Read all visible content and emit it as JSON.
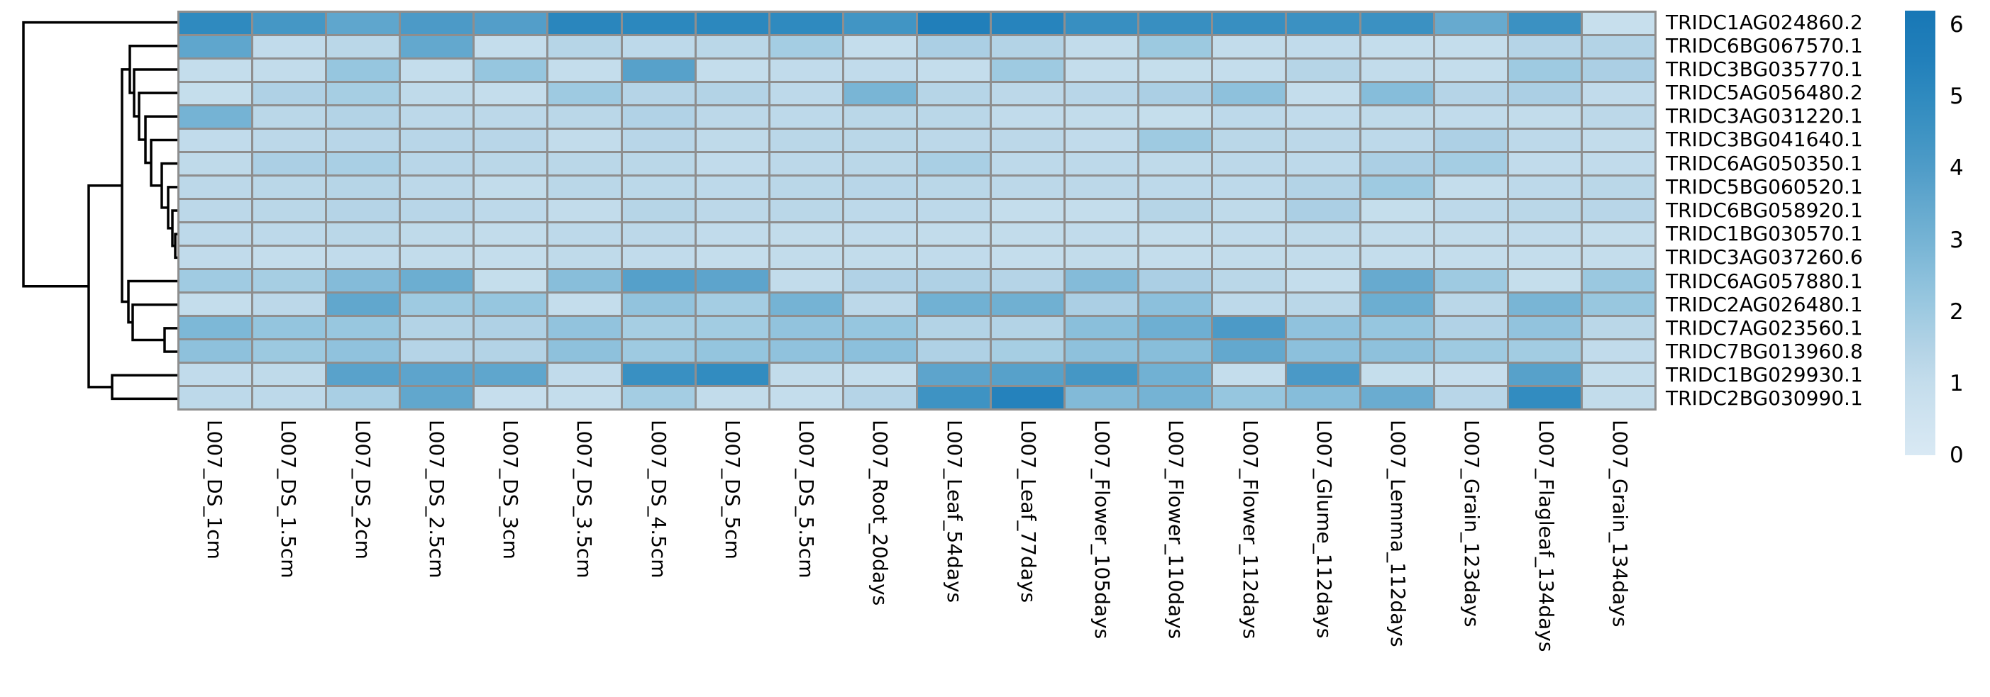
{
  "figure": {
    "kind": "seaborn-style clustermap",
    "background": "#ffffff"
  },
  "chart_data": {
    "type": "heatmap",
    "title": "",
    "xlabel": "",
    "ylabel": "",
    "legend_position": "colorbar-right",
    "grid_line_color": "#8e8e8e",
    "dendrogram_color": "#000000",
    "rows": [
      "TRIDC1AG024860.2",
      "TRIDC6BG067570.1",
      "TRIDC3BG035770.1",
      "TRIDC5AG056480.2",
      "TRIDC3AG031220.1",
      "TRIDC3BG041640.1",
      "TRIDC6AG050350.1",
      "TRIDC5BG060520.1",
      "TRIDC6BG058920.1",
      "TRIDC1BG030570.1",
      "TRIDC3AG037260.6",
      "TRIDC6AG057880.1",
      "TRIDC2AG026480.1",
      "TRIDC7AG023560.1",
      "TRIDC7BG013960.8",
      "TRIDC1BG029930.1",
      "TRIDC2BG030990.1"
    ],
    "columns": [
      "L007_DS_1cm",
      "L007_DS_1.5cm",
      "L007_DS_2cm",
      "L007_DS_2.5cm",
      "L007_DS_3cm",
      "L007_DS_3.5cm",
      "L007_DS_4.5cm",
      "L007_DS_5cm",
      "L007_DS_5.5cm",
      "L007_Root_20days",
      "L007_Leaf_54days",
      "L007_Leaf_77days",
      "L007_Flower_105days",
      "L007_Flower_110days",
      "L007_Flower_112days",
      "L007_Glume_112days",
      "L007_Lemma_112days",
      "L007_Grain_123days",
      "L007_Flagleaf_134days",
      "L007_Grain_134days"
    ],
    "values": [
      [
        5.0,
        4.3,
        3.6,
        4.1,
        3.9,
        5.2,
        5.1,
        5.1,
        5.0,
        4.4,
        5.6,
        5.3,
        4.7,
        4.7,
        4.7,
        4.6,
        4.6,
        3.4,
        4.6,
        0.85
      ],
      [
        3.6,
        1.1,
        1.3,
        3.5,
        1.0,
        1.4,
        1.2,
        1.3,
        1.85,
        1.0,
        1.7,
        1.5,
        1.05,
        2.05,
        1.05,
        1.1,
        1.0,
        1.0,
        1.45,
        1.5
      ],
      [
        1.0,
        1.05,
        2.2,
        1.0,
        2.2,
        1.0,
        3.8,
        1.0,
        1.1,
        1.1,
        1.0,
        2.0,
        1.0,
        0.95,
        1.0,
        1.4,
        1.05,
        1.0,
        2.0,
        1.7
      ],
      [
        0.95,
        1.6,
        1.8,
        1.15,
        1.0,
        2.0,
        1.45,
        1.5,
        1.2,
        2.9,
        1.4,
        1.25,
        1.35,
        1.7,
        2.4,
        1.0,
        2.6,
        1.45,
        1.7,
        1.1
      ],
      [
        3.0,
        1.3,
        1.5,
        1.25,
        1.25,
        1.3,
        1.55,
        1.25,
        1.2,
        1.3,
        1.3,
        1.1,
        1.05,
        0.95,
        1.2,
        1.1,
        1.15,
        1.1,
        1.05,
        1.25
      ],
      [
        1.1,
        1.25,
        1.35,
        1.35,
        1.35,
        1.05,
        1.35,
        1.15,
        1.3,
        1.3,
        1.25,
        1.25,
        1.1,
        2.0,
        1.3,
        1.25,
        1.2,
        1.65,
        1.2,
        1.05
      ],
      [
        1.15,
        1.7,
        1.75,
        1.35,
        1.3,
        1.3,
        1.3,
        1.1,
        1.25,
        1.3,
        1.75,
        1.2,
        1.2,
        1.15,
        1.25,
        1.2,
        1.7,
        1.85,
        1.1,
        1.1
      ],
      [
        1.25,
        1.3,
        1.4,
        1.25,
        1.05,
        1.3,
        1.27,
        1.2,
        1.3,
        1.35,
        1.3,
        1.25,
        1.25,
        1.2,
        1.2,
        1.5,
        2.0,
        1.0,
        1.2,
        1.3
      ],
      [
        1.25,
        1.3,
        1.45,
        1.35,
        1.2,
        1.05,
        1.4,
        1.25,
        1.3,
        1.2,
        1.2,
        1.0,
        1.0,
        1.4,
        1.15,
        1.7,
        0.95,
        1.2,
        1.3,
        1.35
      ],
      [
        1.2,
        1.2,
        1.3,
        1.15,
        1.05,
        1.2,
        1.25,
        1.1,
        1.05,
        1.1,
        1.05,
        1.05,
        1.1,
        1.0,
        1.1,
        1.15,
        1.05,
        1.05,
        1.1,
        1.0
      ],
      [
        1.1,
        1.0,
        1.1,
        1.05,
        1.0,
        1.15,
        1.1,
        1.0,
        1.05,
        1.05,
        1.1,
        1.0,
        1.05,
        1.0,
        1.05,
        1.05,
        1.0,
        1.0,
        1.0,
        1.0
      ],
      [
        1.95,
        1.8,
        2.65,
        3.25,
        0.95,
        2.55,
        3.85,
        3.65,
        1.05,
        1.55,
        1.6,
        1.45,
        2.65,
        1.7,
        1.3,
        1.0,
        3.4,
        2.0,
        0.95,
        2.1
      ],
      [
        1.0,
        1.25,
        3.55,
        2.0,
        2.2,
        1.0,
        2.3,
        1.85,
        3.0,
        1.25,
        3.1,
        3.15,
        1.7,
        2.45,
        1.2,
        1.3,
        3.25,
        1.3,
        2.9,
        2.15
      ],
      [
        2.8,
        2.25,
        2.15,
        1.5,
        1.6,
        2.3,
        1.8,
        1.9,
        2.3,
        2.2,
        1.5,
        1.5,
        2.5,
        3.2,
        4.1,
        2.35,
        2.2,
        1.55,
        2.3,
        1.3
      ],
      [
        2.4,
        2.05,
        2.35,
        1.45,
        1.5,
        2.4,
        2.0,
        2.25,
        2.35,
        2.45,
        1.6,
        1.8,
        2.4,
        2.55,
        3.5,
        2.45,
        2.4,
        2.0,
        1.9,
        1.1
      ],
      [
        1.1,
        1.15,
        3.75,
        3.65,
        3.6,
        1.1,
        4.65,
        4.9,
        1.05,
        1.0,
        3.65,
        3.8,
        4.3,
        3.1,
        1.0,
        4.15,
        0.95,
        0.9,
        3.8,
        1.0
      ],
      [
        1.2,
        1.2,
        1.75,
        3.55,
        0.9,
        1.0,
        1.85,
        1.05,
        1.0,
        1.45,
        4.5,
        5.4,
        2.7,
        3.0,
        2.2,
        2.6,
        3.3,
        1.35,
        4.9,
        1.05
      ]
    ],
    "colorbar": {
      "vmin": 0,
      "vmax": 6.2,
      "ticks": [
        0,
        1,
        2,
        3,
        4,
        5,
        6
      ],
      "colormap_stops": [
        [
          0.0,
          "#d9e9f4"
        ],
        [
          0.5,
          "#cfe3f0"
        ],
        [
          1.0,
          "#c4ddec"
        ],
        [
          1.5,
          "#b3d3e6"
        ],
        [
          2.0,
          "#9ecae1"
        ],
        [
          2.5,
          "#8abfdb"
        ],
        [
          3.0,
          "#75b3d4"
        ],
        [
          3.5,
          "#63a8ce"
        ],
        [
          4.0,
          "#4f9cc8"
        ],
        [
          4.5,
          "#3e93c3"
        ],
        [
          5.0,
          "#2f8abf"
        ],
        [
          5.5,
          "#2280bb"
        ],
        [
          6.0,
          "#1b7ab7"
        ],
        [
          6.2,
          "#1877b6"
        ]
      ]
    },
    "row_dendrogram": {
      "orientation": "left",
      "linkage": [
        [
          "L9",
          "L10",
          247
        ],
        [
          "L8",
          "N0",
          243
        ],
        [
          "L7",
          "N1",
          237
        ],
        [
          "L6",
          "N2",
          228
        ],
        [
          "L5",
          "N3",
          213
        ],
        [
          "L4",
          "N4",
          205
        ],
        [
          "L3",
          "N5",
          196
        ],
        [
          "L2",
          "N6",
          189
        ],
        [
          "L1",
          "N7",
          183
        ],
        [
          "L13",
          "L14",
          232
        ],
        [
          "L12",
          "N9",
          187
        ],
        [
          "L11",
          "N10",
          181
        ],
        [
          "N8",
          "N11",
          172
        ],
        [
          "L15",
          "L16",
          158
        ],
        [
          "N12",
          "N13",
          125
        ],
        [
          "L0",
          "N14",
          33
        ]
      ]
    }
  }
}
